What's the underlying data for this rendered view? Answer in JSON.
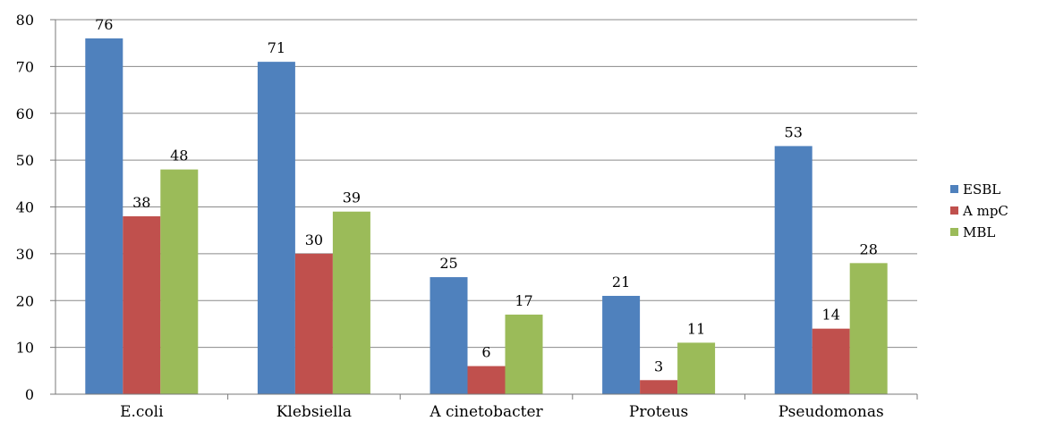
{
  "chart_data": {
    "type": "bar",
    "categories": [
      "E.coli",
      "Klebsiella",
      "A cinetobacter",
      "Proteus",
      "Pseudomonas"
    ],
    "series": [
      {
        "name": "ESBL",
        "values": [
          76,
          71,
          25,
          21,
          53
        ],
        "color": "#4f81bd"
      },
      {
        "name": "A mpC",
        "values": [
          38,
          30,
          6,
          3,
          14
        ],
        "color": "#c0504d"
      },
      {
        "name": "MBL",
        "values": [
          48,
          39,
          17,
          11,
          28
        ],
        "color": "#9bbb59"
      }
    ],
    "yticks": [
      0,
      10,
      20,
      30,
      40,
      50,
      60,
      70,
      80
    ],
    "ylim": [
      0,
      80
    ],
    "grid": true,
    "legend": "right",
    "title": "",
    "xlabel": "",
    "ylabel": ""
  }
}
